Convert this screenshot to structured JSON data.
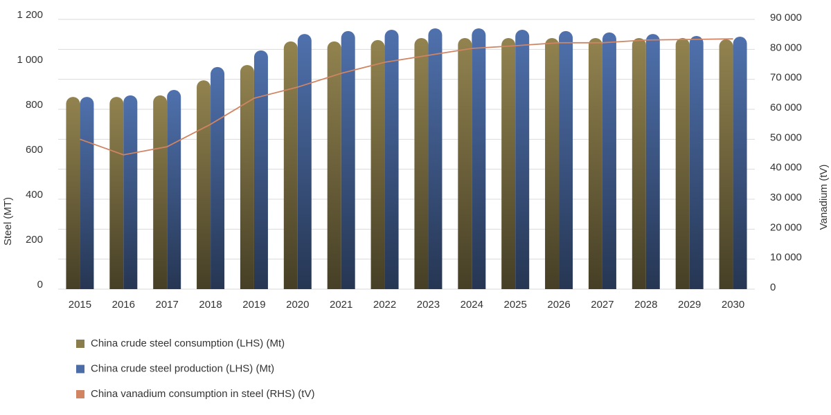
{
  "chart_data": {
    "type": "bar_line",
    "y_label": "Steel (MT)",
    "y2_label": "Vanadium (tV)",
    "categories": [
      "2015",
      "2016",
      "2017",
      "2018",
      "2019",
      "2020",
      "2021",
      "2022",
      "2023",
      "2024",
      "2025",
      "2026",
      "2027",
      "2028",
      "2029",
      "2030"
    ],
    "series": [
      {
        "name": "China crude steel consumption (LHS) (Mt)",
        "color": "#8b7d4b",
        "type": "bar",
        "values": [
          855,
          855,
          862,
          929,
          997,
          1102,
          1102,
          1108,
          1117,
          1117,
          1117,
          1117,
          1117,
          1117,
          1117,
          1111
        ]
      },
      {
        "name": "China crude steel production (LHS) (Mt)",
        "color": "#4b6ca5",
        "type": "bar",
        "values": [
          855,
          862,
          886,
          988,
          1062,
          1135,
          1148,
          1154,
          1160,
          1160,
          1154,
          1148,
          1142,
          1135,
          1126,
          1123
        ]
      },
      {
        "name": "China vanadium consumption in steel (RHS) (tV)",
        "color": "#d08462",
        "type": "line",
        "axis": "y2",
        "values": [
          50000,
          44800,
          47500,
          55000,
          63700,
          67400,
          72000,
          75700,
          78000,
          80300,
          81200,
          82200,
          82200,
          83100,
          83300,
          83500
        ]
      }
    ],
    "ylim": [
      0,
      1200
    ],
    "yticks": [
      0,
      200,
      400,
      600,
      800,
      {
        "value": 1000,
        "label": "1 000"
      },
      {
        "value": 1200,
        "label": "1 200"
      }
    ],
    "y2lim": [
      0,
      90000
    ],
    "y2ticks": [
      0,
      {
        "value": 10000,
        "label": "10 000"
      },
      {
        "value": 20000,
        "label": "20 000"
      },
      {
        "value": 30000,
        "label": "30 000"
      },
      {
        "value": 40000,
        "label": "40 000"
      },
      {
        "value": 50000,
        "label": "50 000"
      },
      {
        "value": 60000,
        "label": "60 000"
      },
      {
        "value": 70000,
        "label": "70 000"
      },
      {
        "value": 80000,
        "label": "80 000"
      },
      {
        "value": 90000,
        "label": "90 000"
      }
    ],
    "grid": true
  }
}
